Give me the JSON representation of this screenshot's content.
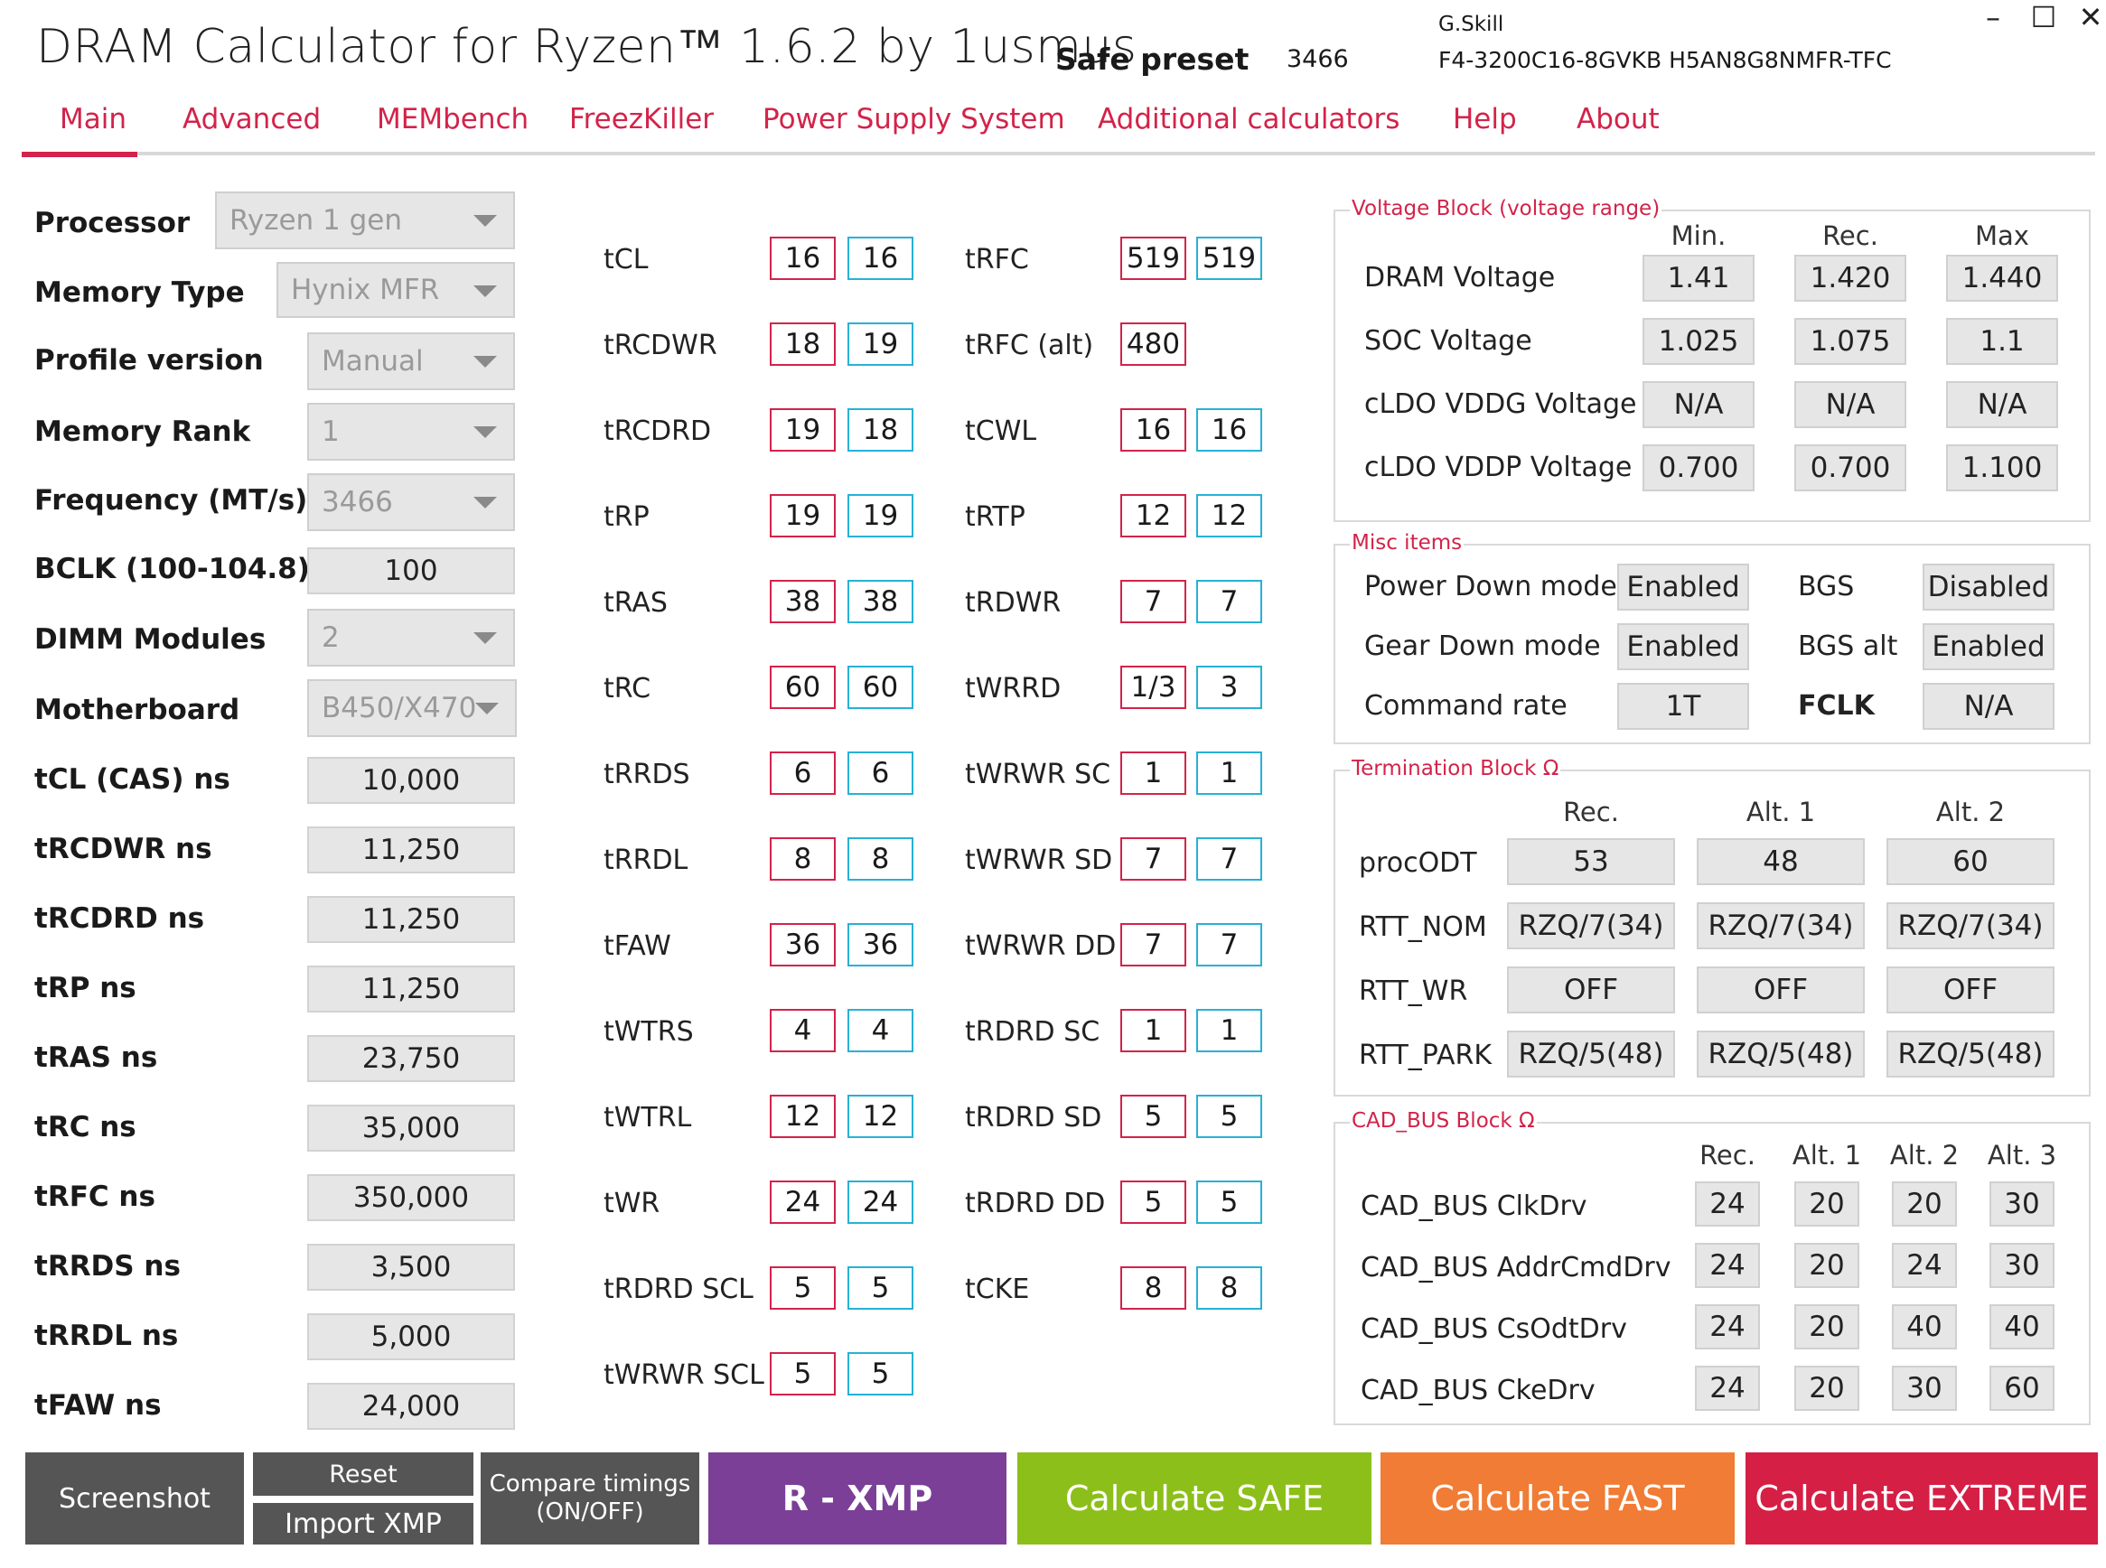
{
  "header": {
    "title": "DRAM Calculator for Ryzen™ 1.6.2 by 1usmus",
    "preset_label": "Safe preset",
    "preset_value": "3466",
    "vendor": "G.Skill",
    "part": "F4-3200C16-8GVKB  H5AN8G8NMFR-TFC",
    "minimize": "–",
    "maximize": "☐",
    "close": "✕"
  },
  "tabs": [
    "Main",
    "Advanced",
    "MEMbench",
    "FreezKiller",
    "Power Supply System",
    "Additional calculators",
    "Help",
    "About"
  ],
  "left": {
    "dropdowns": [
      {
        "label": "Processor",
        "value": "Ryzen 1 gen"
      },
      {
        "label": "Memory Type",
        "value": "Hynix MFR"
      },
      {
        "label": "Profile version",
        "value": "Manual"
      },
      {
        "label": "Memory Rank",
        "value": "1"
      },
      {
        "label": "Frequency (MT/s)",
        "value": "3466"
      },
      {
        "label": "BCLK (100-104.8)",
        "value": "100"
      },
      {
        "label": "DIMM Modules",
        "value": "2"
      },
      {
        "label": "Motherboard",
        "value": "B450/X470"
      }
    ],
    "ns": [
      {
        "label": "tCL (CAS) ns",
        "value": "10,000"
      },
      {
        "label": "tRCDWR ns",
        "value": "11,250"
      },
      {
        "label": "tRCDRD ns",
        "value": "11,250"
      },
      {
        "label": "tRP ns",
        "value": "11,250"
      },
      {
        "label": "tRAS ns",
        "value": "23,750"
      },
      {
        "label": "tRC ns",
        "value": "35,000"
      },
      {
        "label": "tRFC ns",
        "value": "350,000"
      },
      {
        "label": "tRRDS ns",
        "value": "3,500"
      },
      {
        "label": "tRRDL ns",
        "value": "5,000"
      },
      {
        "label": "tFAW ns",
        "value": "24,000"
      }
    ]
  },
  "timings1": [
    {
      "label": "tCL",
      "a": "16",
      "b": "16"
    },
    {
      "label": "tRCDWR",
      "a": "18",
      "b": "19"
    },
    {
      "label": "tRCDRD",
      "a": "19",
      "b": "18"
    },
    {
      "label": "tRP",
      "a": "19",
      "b": "19"
    },
    {
      "label": "tRAS",
      "a": "38",
      "b": "38"
    },
    {
      "label": "tRC",
      "a": "60",
      "b": "60"
    },
    {
      "label": "tRRDS",
      "a": "6",
      "b": "6"
    },
    {
      "label": "tRRDL",
      "a": "8",
      "b": "8"
    },
    {
      "label": "tFAW",
      "a": "36",
      "b": "36"
    },
    {
      "label": "tWTRS",
      "a": "4",
      "b": "4"
    },
    {
      "label": "tWTRL",
      "a": "12",
      "b": "12"
    },
    {
      "label": "tWR",
      "a": "24",
      "b": "24"
    },
    {
      "label": "tRDRD SCL",
      "a": "5",
      "b": "5"
    },
    {
      "label": "tWRWR SCL",
      "a": "5",
      "b": "5"
    }
  ],
  "timings2": [
    {
      "label": "tRFC",
      "a": "519",
      "b": "519"
    },
    {
      "label": "tRFC (alt)",
      "a": "480",
      "b": ""
    },
    {
      "label": "tCWL",
      "a": "16",
      "b": "16"
    },
    {
      "label": "tRTP",
      "a": "12",
      "b": "12"
    },
    {
      "label": "tRDWR",
      "a": "7",
      "b": "7"
    },
    {
      "label": "tWRRD",
      "a": "1/3",
      "b": "3"
    },
    {
      "label": "tWRWR SC",
      "a": "1",
      "b": "1"
    },
    {
      "label": "tWRWR SD",
      "a": "7",
      "b": "7"
    },
    {
      "label": "tWRWR DD",
      "a": "7",
      "b": "7"
    },
    {
      "label": "tRDRD SC",
      "a": "1",
      "b": "1"
    },
    {
      "label": "tRDRD SD",
      "a": "5",
      "b": "5"
    },
    {
      "label": "tRDRD DD",
      "a": "5",
      "b": "5"
    },
    {
      "label": "tCKE",
      "a": "8",
      "b": "8"
    }
  ],
  "voltage": {
    "title": "Voltage Block (voltage range)",
    "headers": [
      "Min.",
      "Rec.",
      "Max"
    ],
    "rows": [
      {
        "label": "DRAM Voltage",
        "values": [
          "1.41",
          "1.420",
          "1.440"
        ]
      },
      {
        "label": "SOC Voltage",
        "values": [
          "1.025",
          "1.075",
          "1.1"
        ]
      },
      {
        "label": "cLDO VDDG Voltage",
        "values": [
          "N/A",
          "N/A",
          "N/A"
        ]
      },
      {
        "label": "cLDO VDDP Voltage",
        "values": [
          "0.700",
          "0.700",
          "1.100"
        ]
      }
    ]
  },
  "misc": {
    "title": "Misc items",
    "rows": [
      {
        "label": "Power Down mode",
        "value": "Enabled",
        "label2": "BGS",
        "value2": "Disabled"
      },
      {
        "label": "Gear Down mode",
        "value": "Enabled",
        "label2": "BGS alt",
        "value2": "Enabled"
      },
      {
        "label": "Command rate",
        "value": "1T",
        "label2": "FCLK",
        "value2": "N/A"
      }
    ]
  },
  "termination": {
    "title": "Termination Block Ω",
    "headers": [
      "Rec.",
      "Alt. 1",
      "Alt. 2"
    ],
    "rows": [
      {
        "label": "procODT",
        "values": [
          "53",
          "48",
          "60"
        ]
      },
      {
        "label": "RTT_NOM",
        "values": [
          "RZQ/7(34)",
          "RZQ/7(34)",
          "RZQ/7(34)"
        ]
      },
      {
        "label": "RTT_WR",
        "values": [
          "OFF",
          "OFF",
          "OFF"
        ]
      },
      {
        "label": "RTT_PARK",
        "values": [
          "RZQ/5(48)",
          "RZQ/5(48)",
          "RZQ/5(48)"
        ]
      }
    ]
  },
  "cadbus": {
    "title": "CAD_BUS Block Ω",
    "headers": [
      "Rec.",
      "Alt. 1",
      "Alt. 2",
      "Alt. 3"
    ],
    "rows": [
      {
        "label": "CAD_BUS ClkDrv",
        "values": [
          "24",
          "20",
          "20",
          "30"
        ]
      },
      {
        "label": "CAD_BUS AddrCmdDrv",
        "values": [
          "24",
          "20",
          "24",
          "30"
        ]
      },
      {
        "label": "CAD_BUS CsOdtDrv",
        "values": [
          "24",
          "20",
          "40",
          "40"
        ]
      },
      {
        "label": "CAD_BUS CkeDrv",
        "values": [
          "24",
          "20",
          "30",
          "60"
        ]
      }
    ]
  },
  "buttons": {
    "screenshot": "Screenshot",
    "reset": "Reset",
    "import_xmp": "Import XMP",
    "compare_line1": "Compare timings",
    "compare_line2": "(ON/OFF)",
    "rxmp": "R - XMP",
    "safe": "Calculate SAFE",
    "fast": "Calculate FAST",
    "extreme": "Calculate EXTREME"
  },
  "colors": {
    "accent": "#d3234a",
    "timing_border_a": "#d3234a",
    "timing_border_b": "#27b1d6",
    "btn_dark": "#555555",
    "btn_rxmp": "#7b3f98",
    "btn_safe": "#8cbf1a",
    "btn_fast": "#f07c35",
    "btn_extreme": "#d51f45"
  }
}
